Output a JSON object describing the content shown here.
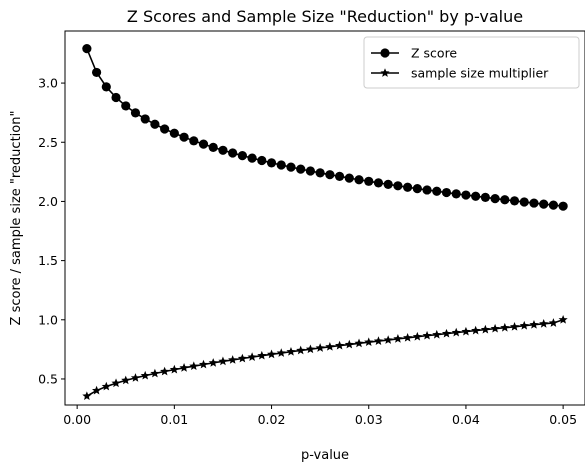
{
  "chart_data": {
    "type": "line",
    "title": "Z Scores and Sample Size \"Reduction\" by p-value",
    "xlabel": "p-value",
    "ylabel": "Z score / sample size \"reduction\"",
    "xlim": [
      -0.00125,
      0.05225
    ],
    "ylim": [
      0.28,
      3.44
    ],
    "xticks": [
      0.0,
      0.01,
      0.02,
      0.03,
      0.04,
      0.05
    ],
    "xtick_labels": [
      "0.00",
      "0.01",
      "0.02",
      "0.03",
      "0.04",
      "0.05"
    ],
    "yticks": [
      0.5,
      1.0,
      1.5,
      2.0,
      2.5,
      3.0
    ],
    "ytick_labels": [
      "0.5",
      "1.0",
      "1.5",
      "2.0",
      "2.5",
      "3.0"
    ],
    "grid": false,
    "legend_position": "top-right",
    "x": [
      0.001,
      0.002,
      0.003,
      0.004,
      0.005,
      0.006,
      0.007,
      0.008,
      0.009,
      0.01,
      0.011,
      0.012,
      0.013,
      0.014,
      0.015,
      0.016,
      0.017,
      0.018,
      0.019,
      0.02,
      0.021,
      0.022,
      0.023,
      0.024,
      0.025,
      0.026,
      0.027,
      0.028,
      0.029,
      0.03,
      0.031,
      0.032,
      0.033,
      0.034,
      0.035,
      0.036,
      0.037,
      0.038,
      0.039,
      0.04,
      0.041,
      0.042,
      0.043,
      0.044,
      0.045,
      0.046,
      0.047,
      0.048,
      0.049,
      0.05
    ],
    "series": [
      {
        "name": "Z score",
        "marker": "circle",
        "color": "#000000",
        "values": [
          3.291,
          3.09,
          2.968,
          2.878,
          2.807,
          2.748,
          2.697,
          2.652,
          2.612,
          2.576,
          2.543,
          2.512,
          2.484,
          2.457,
          2.432,
          2.409,
          2.387,
          2.366,
          2.346,
          2.326,
          2.308,
          2.29,
          2.273,
          2.257,
          2.241,
          2.226,
          2.212,
          2.197,
          2.183,
          2.17,
          2.157,
          2.144,
          2.132,
          2.12,
          2.108,
          2.097,
          2.086,
          2.075,
          2.064,
          2.054,
          2.044,
          2.034,
          2.024,
          2.014,
          2.005,
          1.995,
          1.986,
          1.977,
          1.969,
          1.96
        ]
      },
      {
        "name": "sample size multiplier",
        "marker": "star",
        "color": "#000000",
        "values": [
          0.355,
          0.402,
          0.436,
          0.464,
          0.488,
          0.509,
          0.528,
          0.546,
          0.563,
          0.579,
          0.594,
          0.608,
          0.622,
          0.636,
          0.649,
          0.661,
          0.673,
          0.685,
          0.697,
          0.708,
          0.719,
          0.73,
          0.741,
          0.751,
          0.762,
          0.772,
          0.782,
          0.791,
          0.801,
          0.811,
          0.82,
          0.829,
          0.839,
          0.848,
          0.857,
          0.866,
          0.874,
          0.883,
          0.892,
          0.9,
          0.909,
          0.917,
          0.925,
          0.933,
          0.941,
          0.95,
          0.958,
          0.966,
          0.973,
          1.0
        ]
      }
    ]
  }
}
